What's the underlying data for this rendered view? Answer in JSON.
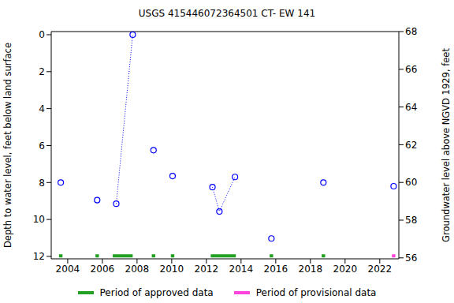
{
  "chart_data": {
    "type": "scatter",
    "title": "USGS 415446072364501 CT- EW  141",
    "y_label": "Depth to water level, feet below land surface",
    "y2_label": "Groundwater level above NGVD 1929, feet",
    "x": [
      2003.6,
      2005.7,
      2006.8,
      2007.75,
      2008.95,
      2010.05,
      2012.35,
      2012.75,
      2013.65,
      2015.75,
      2018.75,
      2022.8
    ],
    "series": [
      {
        "values": [
          8.0,
          8.95,
          9.15,
          0,
          6.25,
          7.65,
          8.25,
          9.57,
          7.7,
          11.03,
          8.0,
          8.2
        ],
        "marker": "circle",
        "line_style": "none",
        "color": "#0000ff"
      },
      {
        "values": [
          null,
          null,
          9.15,
          0,
          null,
          null,
          8.25,
          9.57,
          7.7,
          null,
          null,
          null
        ],
        "marker": "none",
        "line_style": "dotted",
        "color": "#0000ff"
      }
    ],
    "xlim": [
      2003.05,
      2023.1
    ],
    "xticks": [
      2004,
      2006,
      2008,
      2010,
      2012,
      2014,
      2016,
      2018,
      2020,
      2022
    ],
    "ylim": [
      12.13,
      -0.17
    ],
    "yticks": [
      0,
      2,
      4,
      6,
      8,
      10,
      12
    ],
    "y2lim": [
      55.95,
      68
    ],
    "y2ticks": [
      56,
      58,
      60,
      62,
      64,
      66,
      68
    ],
    "periods": [
      {
        "name": "Period of approved data",
        "color": "#22a022",
        "ranges": [
          [
            2003.5,
            2003.7
          ],
          [
            2005.6,
            2005.8
          ],
          [
            2006.6,
            2007.75
          ],
          [
            2008.85,
            2009.05
          ],
          [
            2009.95,
            2010.15
          ],
          [
            2012.25,
            2013.7
          ],
          [
            2015.65,
            2015.85
          ],
          [
            2018.65,
            2018.85
          ]
        ]
      },
      {
        "name": "Period of provisional data",
        "color": "#ff44dd",
        "ranges": [
          [
            2022.7,
            2022.9
          ]
        ]
      }
    ],
    "legend": "bottom",
    "grid": false
  }
}
